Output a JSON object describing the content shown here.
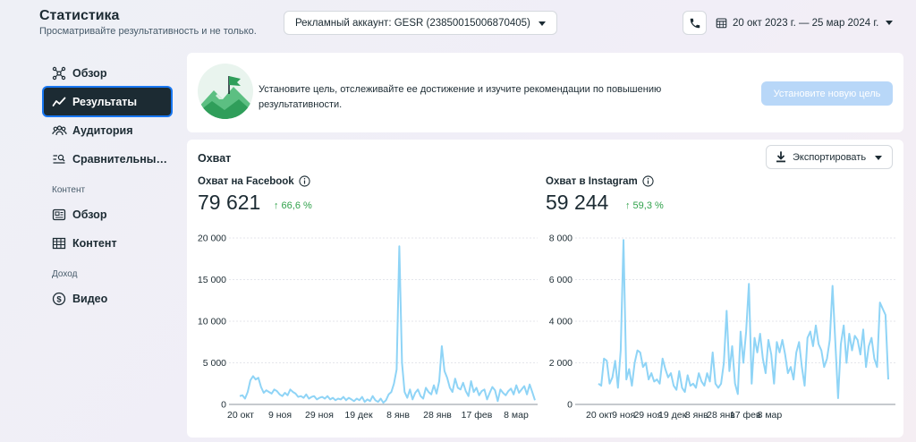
{
  "header": {
    "title": "Статистика",
    "subtitle": "Просматривайте результативность и не только.",
    "ad_account": "Рекламный аккаунт: GESR (23850015006870405)",
    "date_range": "20 окт 2023 г. — 25 мар 2024 г."
  },
  "sidebar": {
    "items": [
      {
        "label": "Обзор",
        "icon": "network-icon"
      },
      {
        "label": "Результаты",
        "icon": "trend-icon",
        "active": true
      },
      {
        "label": "Аудитория",
        "icon": "people-icon"
      },
      {
        "label": "Сравнительны…",
        "icon": "compare-icon"
      }
    ],
    "section_content": "Контент",
    "content_items": [
      {
        "label": "Обзор",
        "icon": "overview-icon"
      },
      {
        "label": "Контент",
        "icon": "table-icon"
      }
    ],
    "section_income": "Доход",
    "income_items": [
      {
        "label": "Видео",
        "icon": "dollar-icon"
      }
    ]
  },
  "goal": {
    "text": "Установите цель, отслеживайте ее достижение и изучите рекомендации по повышению результативности.",
    "button": "Установите новую цель"
  },
  "reach": {
    "title": "Охват",
    "export_label": "Экспортировать",
    "facebook": {
      "label": "Охват на Facebook",
      "value": "79 621",
      "change": "↑ 66,6 %"
    },
    "instagram": {
      "label": "Охват в Instagram",
      "value": "59 244",
      "change": "↑ 59,3 %"
    }
  },
  "colors": {
    "accent": "#1877f2",
    "line": "#8fd4f6",
    "positive": "#31a24c",
    "active_nav": "#1c2b33",
    "disabled_button": "#b8d7f8"
  },
  "chart_data": [
    {
      "type": "line",
      "series": [
        {
          "name": "",
          "values": [
            1000,
            1100,
            700,
            1500,
            2900,
            3400,
            3000,
            3200,
            2100,
            1400,
            1700,
            1500,
            1300,
            1800,
            1600,
            1200,
            1000,
            1400,
            1100,
            1800,
            1500,
            1300,
            900,
            1000,
            800,
            1200,
            700,
            900,
            1000,
            600,
            800,
            900,
            700,
            1000,
            600,
            800,
            500,
            700,
            600,
            900,
            500,
            800,
            600,
            400,
            700,
            500,
            900,
            300,
            600,
            400,
            1000,
            500,
            300,
            700,
            200,
            500,
            1200,
            1500,
            2500,
            4200,
            19000,
            5000,
            1500,
            800,
            1800,
            600,
            1400,
            1800,
            1000,
            700,
            2000,
            1500,
            1200,
            2300,
            1300,
            2800,
            7000,
            4000,
            3200,
            2000,
            1500,
            3100,
            2000,
            1800,
            2600,
            1600,
            1000,
            2800,
            1500,
            2000,
            1100,
            1600,
            1800,
            600,
            1400,
            2100,
            1700,
            400,
            1800,
            1400,
            1100,
            1600,
            1900,
            1200,
            2300,
            1400,
            1800,
            2200,
            1200,
            2400,
            1500,
            500
          ]
        }
      ],
      "x_tick_labels": [
        "20 окт",
        "9 ноя",
        "29 ноя",
        "19 дек",
        "8 янв",
        "28 янв",
        "17 фев",
        "8 мар"
      ],
      "y_tick_labels": [
        "0",
        "5 000",
        "10 000",
        "15 000",
        "20 000"
      ],
      "ylim": [
        0,
        20000
      ],
      "grid": true
    },
    {
      "type": "line",
      "series": [
        {
          "name": "",
          "values": [
            1000,
            900,
            2200,
            2100,
            1000,
            1300,
            2100,
            800,
            2600,
            7900,
            1200,
            1700,
            900,
            2000,
            2600,
            2500,
            1800,
            2000,
            1200,
            1500,
            1100,
            1200,
            1000,
            2200,
            1700,
            1300,
            1500,
            900,
            700,
            1600,
            800,
            600,
            1400,
            900,
            1000,
            800,
            1500,
            1100,
            900,
            1500,
            1100,
            2500,
            1000,
            800,
            1000,
            2000,
            4500,
            1600,
            2800,
            1000,
            500,
            3500,
            2000,
            3500,
            5800,
            1000,
            3200,
            2500,
            3400,
            2200,
            1500,
            3100,
            2400,
            1000,
            3000,
            2500,
            3100,
            2400,
            1500,
            1800,
            1200,
            2500,
            3000,
            1800,
            900,
            3200,
            3500,
            2800,
            3800,
            2900,
            2600,
            1800,
            2200,
            3100,
            5700,
            3000,
            300,
            2900,
            3800,
            2000,
            3400,
            2600,
            3300,
            3100,
            2400,
            3600,
            1800,
            2800,
            3200,
            2200,
            1800,
            4900,
            4600,
            4300,
            1200
          ]
        }
      ],
      "x_tick_labels": [
        "20 окт",
        "9 ноя",
        "29 ноя",
        "19 дек",
        "8 янв",
        "28 янв",
        "17 фев",
        "8 мар"
      ],
      "y_tick_labels": [
        "0",
        "2 000",
        "4 000",
        "6 000",
        "8 000"
      ],
      "ylim": [
        0,
        8000
      ],
      "grid": true
    }
  ]
}
